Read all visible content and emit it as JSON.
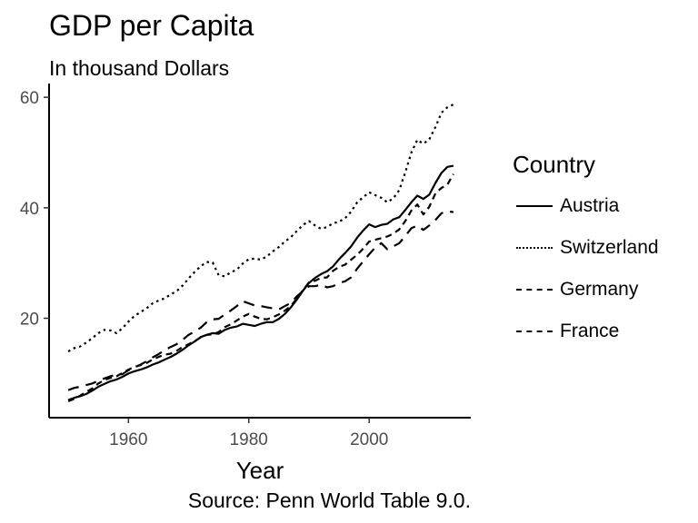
{
  "chart_data": {
    "type": "line",
    "title": "GDP per Capita",
    "subtitle": "In thousand Dollars",
    "caption": "Source: Penn World Table 9.0.",
    "xlabel": "Year",
    "ylabel": "",
    "xlim": [
      1950,
      2014
    ],
    "ylim": [
      4.5,
      60
    ],
    "xticks": [
      1960,
      1980,
      2000
    ],
    "yticks": [
      20,
      40,
      60
    ],
    "grid": false,
    "legend": {
      "title": "Country",
      "position": "right"
    },
    "x": [
      1950,
      1951,
      1952,
      1953,
      1954,
      1955,
      1956,
      1957,
      1958,
      1959,
      1960,
      1961,
      1962,
      1963,
      1964,
      1965,
      1966,
      1967,
      1968,
      1969,
      1970,
      1971,
      1972,
      1973,
      1974,
      1975,
      1976,
      1977,
      1978,
      1979,
      1980,
      1981,
      1982,
      1983,
      1984,
      1985,
      1986,
      1987,
      1988,
      1989,
      1990,
      1991,
      1992,
      1993,
      1994,
      1995,
      1996,
      1997,
      1998,
      1999,
      2000,
      2001,
      2002,
      2003,
      2004,
      2005,
      2006,
      2007,
      2008,
      2009,
      2010,
      2011,
      2012,
      2013,
      2014
    ],
    "series": [
      {
        "name": "Austria",
        "dash": "solid",
        "values": [
          5.2,
          5.6,
          5.9,
          6.3,
          6.9,
          7.6,
          8.1,
          8.6,
          8.9,
          9.4,
          10.0,
          10.4,
          10.7,
          11.1,
          11.6,
          12.0,
          12.5,
          13.0,
          13.6,
          14.3,
          15.1,
          15.8,
          16.6,
          17.0,
          17.3,
          17.2,
          17.9,
          18.3,
          18.5,
          19.0,
          18.8,
          18.6,
          19.0,
          19.3,
          19.3,
          19.9,
          20.8,
          22.0,
          23.4,
          25.0,
          26.4,
          27.3,
          28.0,
          28.5,
          29.4,
          30.7,
          31.8,
          33.0,
          34.6,
          35.9,
          37.0,
          36.5,
          36.9,
          37.1,
          37.9,
          38.3,
          39.6,
          41.0,
          42.2,
          41.6,
          42.4,
          44.5,
          46.3,
          47.4,
          47.6
        ]
      },
      {
        "name": "Switzerland",
        "dash": "dotted",
        "values": [
          14.0,
          14.6,
          14.9,
          15.6,
          16.4,
          17.3,
          17.9,
          17.8,
          17.3,
          18.2,
          19.4,
          20.4,
          21.1,
          21.8,
          22.7,
          23.2,
          23.6,
          24.3,
          24.9,
          25.9,
          27.2,
          28.4,
          29.4,
          30.2,
          30.1,
          27.8,
          27.6,
          28.3,
          28.8,
          29.9,
          30.7,
          30.8,
          30.6,
          31.2,
          32.1,
          32.9,
          33.9,
          34.7,
          35.8,
          36.9,
          37.6,
          36.8,
          36.2,
          36.5,
          37.2,
          37.5,
          38.1,
          39.3,
          41.0,
          41.9,
          42.8,
          42.3,
          41.8,
          41.0,
          41.7,
          43.2,
          46.4,
          50.0,
          52.3,
          51.6,
          52.4,
          54.6,
          57.2,
          58.2,
          58.7
        ]
      },
      {
        "name": "Germany",
        "dash": "short-dash",
        "values": [
          5.0,
          5.4,
          6.0,
          6.7,
          7.3,
          8.2,
          8.8,
          9.2,
          9.5,
          10.1,
          10.7,
          11.2,
          11.5,
          11.9,
          12.5,
          13.0,
          13.4,
          13.6,
          14.1,
          14.8,
          15.3,
          15.9,
          16.5,
          17.0,
          17.1,
          17.5,
          18.4,
          18.9,
          19.6,
          20.3,
          20.8,
          20.3,
          19.9,
          19.8,
          20.2,
          20.7,
          21.4,
          22.2,
          23.6,
          25.1,
          26.5,
          26.8,
          27.3,
          27.4,
          28.6,
          29.3,
          29.7,
          30.6,
          31.5,
          32.6,
          33.9,
          34.2,
          34.5,
          34.8,
          35.3,
          36.1,
          37.6,
          39.5,
          40.6,
          38.8,
          40.2,
          42.6,
          43.6,
          44.2,
          46.1
        ]
      },
      {
        "name": "France",
        "dash": "long-dash",
        "values": [
          7.0,
          7.4,
          7.6,
          7.9,
          8.2,
          8.7,
          9.1,
          9.5,
          9.8,
          9.9,
          10.6,
          11.1,
          11.6,
          12.2,
          12.9,
          13.5,
          14.2,
          14.8,
          15.3,
          16.1,
          17.0,
          17.6,
          18.3,
          19.3,
          19.8,
          19.9,
          20.7,
          21.4,
          22.2,
          23.1,
          22.7,
          22.3,
          22.2,
          22.0,
          21.8,
          21.6,
          22.2,
          22.8,
          24.0,
          24.9,
          25.8,
          25.8,
          26.1,
          25.6,
          25.8,
          26.4,
          26.7,
          27.4,
          29.0,
          30.3,
          31.6,
          32.8,
          33.6,
          32.5,
          33.0,
          33.6,
          34.9,
          36.3,
          36.8,
          36.0,
          36.8,
          37.8,
          39.0,
          39.4,
          39.2
        ]
      }
    ]
  }
}
